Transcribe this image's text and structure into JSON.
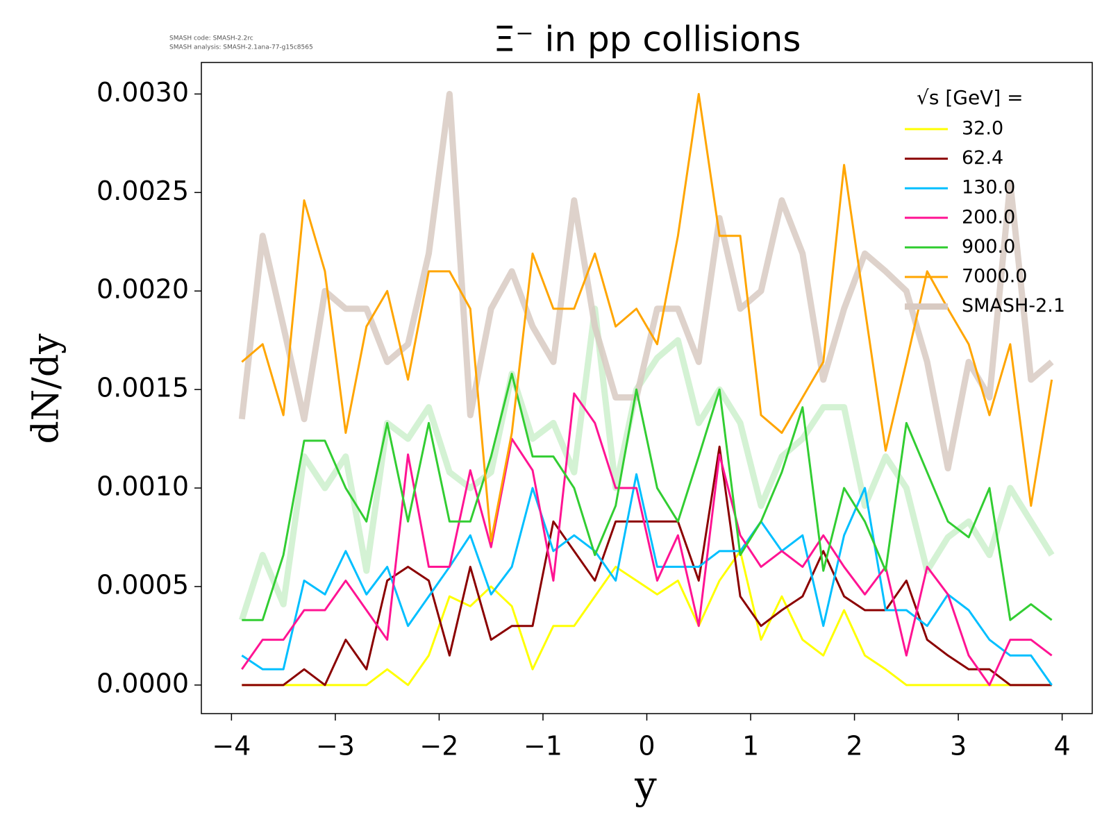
{
  "chart_data": {
    "type": "line",
    "title": "Ξ⁻ in pp collisions",
    "version_notes": [
      "SMASH code:      SMASH-2.2rc",
      "SMASH analysis: SMASH-2.1ana-77-g15c8565"
    ],
    "xlabel": "y",
    "ylabel": "dN/dy",
    "legend_title": "√s  [GeV] =",
    "legend_position": "upper right",
    "xlim": [
      -4.29,
      4.29
    ],
    "ylim": [
      -0.000145,
      0.00316
    ],
    "xticks": [
      {
        "value": -4,
        "label": "−4"
      },
      {
        "value": -3,
        "label": "−3"
      },
      {
        "value": -2,
        "label": "−2"
      },
      {
        "value": -1,
        "label": "−1"
      },
      0,
      1,
      2,
      3,
      4
    ],
    "yticks": [
      {
        "value": 0,
        "label": "0.0000"
      },
      {
        "value": 0.0005,
        "label": "0.0005"
      },
      {
        "value": 0.001,
        "label": "0.0010"
      },
      {
        "value": 0.0015,
        "label": "0.0015"
      },
      {
        "value": 0.002,
        "label": "0.0020"
      },
      {
        "value": 0.0025,
        "label": "0.0025"
      },
      {
        "value": 0.003,
        "label": "0.0030"
      }
    ],
    "x": [
      -3.9,
      -3.7,
      -3.5,
      -3.3,
      -3.1,
      -2.9,
      -2.7,
      -2.5,
      -2.3,
      -2.1,
      -1.9,
      -1.7,
      -1.5,
      -1.3,
      -1.1,
      -0.9,
      -0.7,
      -0.5,
      -0.3,
      -0.1,
      0.1,
      0.3,
      0.5,
      0.7,
      0.9,
      1.1,
      1.3,
      1.5,
      1.7,
      1.9,
      2.1,
      2.3,
      2.5,
      2.7,
      2.9,
      3.1,
      3.3,
      3.5,
      3.7,
      3.9
    ],
    "reference": {
      "name": "SMASH-2.1",
      "color": "#d8cac2",
      "series": [
        {
          "color": "#ccf0cc",
          "values": [
            0.00033,
            0.00066,
            0.00041,
            0.00116,
            0.001,
            0.00116,
            0.00058,
            0.00133,
            0.00125,
            0.00141,
            0.00108,
            0.001,
            0.00108,
            0.00158,
            0.00125,
            0.00133,
            0.00108,
            0.00191,
            0.001,
            0.0015,
            0.00166,
            0.00175,
            0.00133,
            0.0015,
            0.00133,
            0.00091,
            0.00116,
            0.00125,
            0.00141,
            0.00141,
            0.00091,
            0.00116,
            0.001,
            0.00058,
            0.00075,
            0.00083,
            0.00066,
            0.001,
            0.00083,
            0.00066
          ]
        },
        {
          "color": "#d8cac2",
          "values": [
            0.00135,
            0.00228,
            0.00182,
            0.00135,
            0.002,
            0.00191,
            0.00191,
            0.00164,
            0.00173,
            0.00219,
            0.003,
            0.00137,
            0.00191,
            0.0021,
            0.00182,
            0.00164,
            0.00246,
            0.00182,
            0.00146,
            0.00146,
            0.00191,
            0.00191,
            0.00164,
            0.00237,
            0.00191,
            0.002,
            0.00246,
            0.00219,
            0.00155,
            0.00191,
            0.00219,
            0.0021,
            0.002,
            0.00164,
            0.0011,
            0.00164,
            0.00146,
            0.00255,
            0.00155,
            0.00164
          ]
        }
      ]
    },
    "series": [
      {
        "name": "32.0",
        "color": "#ffff00",
        "values": [
          0,
          0,
          0,
          0,
          0,
          0,
          0,
          8e-05,
          0,
          0.00015,
          0.00045,
          0.0004,
          0.0005,
          0.0004,
          8e-05,
          0.0003,
          0.0003,
          0.00045,
          0.0006,
          0.00053,
          0.00046,
          0.00053,
          0.0003,
          0.00053,
          0.00068,
          0.00023,
          0.00045,
          0.00023,
          0.00015,
          0.00038,
          0.00015,
          8e-05,
          0,
          0,
          0,
          0,
          0,
          0,
          0,
          0
        ]
      },
      {
        "name": "62.4",
        "color": "#8b0000",
        "values": [
          0,
          0,
          0,
          8e-05,
          0,
          0.00023,
          8e-05,
          0.00053,
          0.0006,
          0.00053,
          0.00015,
          0.0006,
          0.00023,
          0.0003,
          0.0003,
          0.00083,
          0.00068,
          0.00053,
          0.00083,
          0.00083,
          0.00083,
          0.00083,
          0.00053,
          0.00121,
          0.00045,
          0.0003,
          0.00038,
          0.00045,
          0.00068,
          0.00045,
          0.00038,
          0.00038,
          0.00053,
          0.00023,
          0.00015,
          8e-05,
          8e-05,
          0,
          0,
          0
        ]
      },
      {
        "name": "130.0",
        "color": "#00bfff",
        "values": [
          0.00015,
          8e-05,
          8e-05,
          0.00053,
          0.00046,
          0.00068,
          0.00046,
          0.0006,
          0.0003,
          0.00045,
          0.0006,
          0.00076,
          0.00046,
          0.0006,
          0.001,
          0.00068,
          0.00076,
          0.00068,
          0.00053,
          0.00107,
          0.0006,
          0.0006,
          0.0006,
          0.00068,
          0.00068,
          0.00083,
          0.00068,
          0.00076,
          0.0003,
          0.00076,
          0.001,
          0.00038,
          0.00038,
          0.0003,
          0.00046,
          0.00038,
          0.00023,
          0.00015,
          0.00015,
          0
        ]
      },
      {
        "name": "200.0",
        "color": "#ff1493",
        "values": [
          8e-05,
          0.00023,
          0.00023,
          0.00038,
          0.00038,
          0.00053,
          0.00038,
          0.00023,
          0.00117,
          0.0006,
          0.0006,
          0.00109,
          0.0007,
          0.00125,
          0.00109,
          0.00053,
          0.00148,
          0.00133,
          0.001,
          0.001,
          0.00053,
          0.00076,
          0.0003,
          0.00117,
          0.00076,
          0.0006,
          0.00068,
          0.0006,
          0.00076,
          0.0006,
          0.00046,
          0.0006,
          0.00015,
          0.0006,
          0.00046,
          0.00015,
          0,
          0.00023,
          0.00023,
          0.00015
        ]
      },
      {
        "name": "900.0",
        "color": "#32cd32",
        "values": [
          0.00033,
          0.00033,
          0.00066,
          0.00124,
          0.00124,
          0.001,
          0.00083,
          0.00133,
          0.00083,
          0.00133,
          0.00083,
          0.00083,
          0.00116,
          0.00158,
          0.00116,
          0.00116,
          0.001,
          0.00066,
          0.00091,
          0.0015,
          0.001,
          0.00083,
          0.00116,
          0.0015,
          0.00066,
          0.00083,
          0.00108,
          0.00141,
          0.00058,
          0.001,
          0.00083,
          0.00058,
          0.00133,
          0.00108,
          0.00083,
          0.00075,
          0.001,
          0.00033,
          0.00041,
          0.00033
        ]
      },
      {
        "name": "7000.0",
        "color": "#ffa500",
        "values": [
          0.00164,
          0.00173,
          0.00137,
          0.00246,
          0.0021,
          0.00128,
          0.00182,
          0.002,
          0.00155,
          0.0021,
          0.0021,
          0.00191,
          0.00073,
          0.00128,
          0.00219,
          0.00191,
          0.00191,
          0.00219,
          0.00182,
          0.00191,
          0.00173,
          0.00228,
          0.003,
          0.00228,
          0.00228,
          0.00137,
          0.00128,
          0.00146,
          0.00164,
          0.00264,
          0.00191,
          0.00119,
          0.00164,
          0.0021,
          0.00191,
          0.00173,
          0.00137,
          0.00173,
          0.00091,
          0.00155
        ]
      }
    ]
  }
}
